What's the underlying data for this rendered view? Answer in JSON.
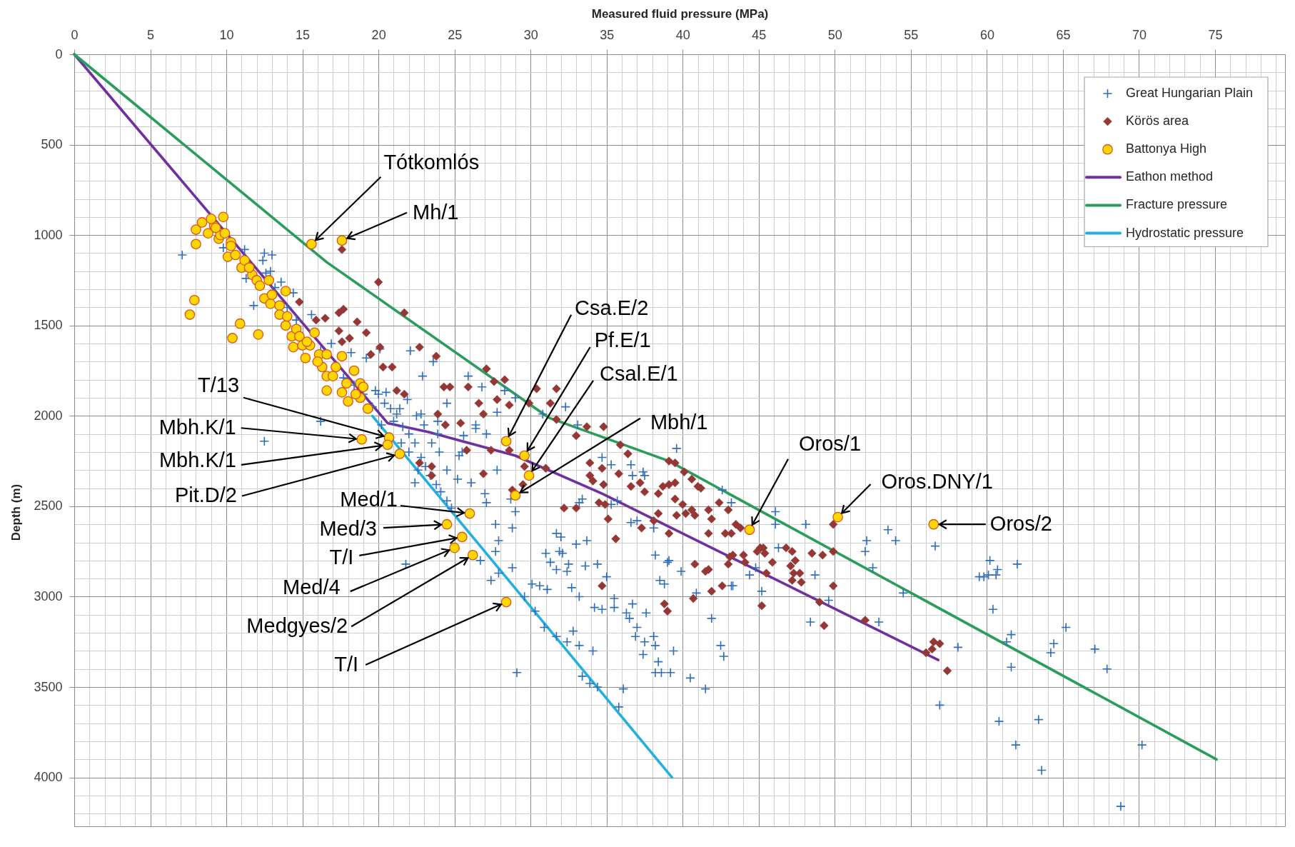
{
  "chart_data": {
    "type": "scatter",
    "xlabel": "Measured fluid pressure (MPa)",
    "ylabel": "Depth (m)",
    "xlim": [
      0,
      79.6
    ],
    "ylim": [
      4270,
      0
    ],
    "xticks": [
      0,
      {
        "value": 1,
        "label": null
      },
      {
        "value": 2,
        "label": null
      },
      {
        "value": 3,
        "label": null
      },
      {
        "value": 4,
        "label": null
      },
      5,
      {
        "value": 6,
        "label": null
      },
      {
        "value": 7,
        "label": null
      },
      {
        "value": 8,
        "label": null
      },
      {
        "value": 9,
        "label": null
      },
      10,
      {
        "value": 11,
        "label": null
      },
      {
        "value": 12,
        "label": null
      },
      {
        "value": 13,
        "label": null
      },
      {
        "value": 14,
        "label": null
      },
      15,
      {
        "value": 16,
        "label": null
      },
      {
        "value": 17,
        "label": null
      },
      {
        "value": 18,
        "label": null
      },
      {
        "value": 19,
        "label": null
      },
      20,
      {
        "value": 21,
        "label": null
      },
      {
        "value": 22,
        "label": null
      },
      {
        "value": 23,
        "label": null
      },
      {
        "value": 24,
        "label": null
      },
      25,
      {
        "value": 26,
        "label": null
      },
      {
        "value": 27,
        "label": null
      },
      {
        "value": 28,
        "label": null
      },
      {
        "value": 29,
        "label": null
      },
      30,
      {
        "value": 31,
        "label": null
      },
      {
        "value": 32,
        "label": null
      },
      {
        "value": 33,
        "label": null
      },
      {
        "value": 34,
        "label": null
      },
      35,
      {
        "value": 36,
        "label": null
      },
      {
        "value": 37,
        "label": null
      },
      {
        "value": 38,
        "label": null
      },
      {
        "value": 39,
        "label": null
      },
      40,
      {
        "value": 41,
        "label": null
      },
      {
        "value": 42,
        "label": null
      },
      {
        "value": 43,
        "label": null
      },
      {
        "value": 44,
        "label": null
      },
      45,
      {
        "value": 46,
        "label": null
      },
      {
        "value": 47,
        "label": null
      },
      {
        "value": 48,
        "label": null
      },
      {
        "value": 49,
        "label": null
      },
      50,
      {
        "value": 51,
        "label": null
      },
      {
        "value": 52,
        "label": null
      },
      {
        "value": 53,
        "label": null
      },
      {
        "value": 54,
        "label": null
      },
      55,
      {
        "value": 56,
        "label": null
      },
      {
        "value": 57,
        "label": null
      },
      {
        "value": 58,
        "label": null
      },
      {
        "value": 59,
        "label": null
      },
      60,
      {
        "value": 61,
        "label": null
      },
      {
        "value": 62,
        "label": null
      },
      {
        "value": 63,
        "label": null
      },
      {
        "value": 64,
        "label": null
      },
      65,
      {
        "value": 66,
        "label": null
      },
      {
        "value": 67,
        "label": null
      },
      {
        "value": 68,
        "label": null
      },
      {
        "value": 69,
        "label": null
      },
      70,
      {
        "value": 71,
        "label": null
      },
      {
        "value": 72,
        "label": null
      },
      {
        "value": 73,
        "label": null
      },
      {
        "value": 74,
        "label": null
      },
      75,
      {
        "value": 76,
        "label": null
      },
      {
        "value": 77,
        "label": null
      },
      {
        "value": 78,
        "label": null
      },
      {
        "value": 79,
        "label": null
      }
    ],
    "yticks": [
      0,
      {
        "value": 100,
        "label": null
      },
      {
        "value": 200,
        "label": null
      },
      {
        "value": 300,
        "label": null
      },
      {
        "value": 400,
        "label": null
      },
      500,
      {
        "value": 600,
        "label": null
      },
      {
        "value": 700,
        "label": null
      },
      {
        "value": 800,
        "label": null
      },
      {
        "value": 900,
        "label": null
      },
      1000,
      {
        "value": 1100,
        "label": null
      },
      {
        "value": 1200,
        "label": null
      },
      {
        "value": 1300,
        "label": null
      },
      {
        "value": 1400,
        "label": null
      },
      1500,
      {
        "value": 1600,
        "label": null
      },
      {
        "value": 1700,
        "label": null
      },
      {
        "value": 1800,
        "label": null
      },
      {
        "value": 1900,
        "label": null
      },
      2000,
      {
        "value": 2100,
        "label": null
      },
      {
        "value": 2200,
        "label": null
      },
      {
        "value": 2300,
        "label": null
      },
      {
        "value": 2400,
        "label": null
      },
      2500,
      {
        "value": 2600,
        "label": null
      },
      {
        "value": 2700,
        "label": null
      },
      {
        "value": 2800,
        "label": null
      },
      {
        "value": 2900,
        "label": null
      },
      3000,
      {
        "value": 3100,
        "label": null
      },
      {
        "value": 3200,
        "label": null
      },
      {
        "value": 3300,
        "label": null
      },
      {
        "value": 3400,
        "label": null
      },
      3500,
      {
        "value": 3600,
        "label": null
      },
      {
        "value": 3700,
        "label": null
      },
      {
        "value": 3800,
        "label": null
      },
      {
        "value": 3900,
        "label": null
      },
      4000,
      {
        "value": 4100,
        "label": null
      },
      {
        "value": 4200,
        "label": null
      }
    ],
    "grid": true,
    "legend": "top right",
    "series": [
      {
        "name": "Great Hungarian Plain",
        "marker": "cross",
        "color": "#2e6cc0",
        "x": [
          7.1,
          12.5,
          13.0,
          12.4,
          12.9,
          11.8,
          13.6,
          14.4,
          15.6,
          16.9,
          18.2,
          19.2,
          20.1,
          22.1,
          23.6,
          22.9,
          21.4,
          22.8,
          16.2,
          19.8,
          20.5,
          11.3,
          9.8,
          12.5,
          21.8,
          22.4,
          25.9,
          26.8,
          24.5,
          28.3,
          29.0,
          27.8,
          32.3,
          30.8,
          33.1,
          23.9,
          26.4,
          20.0,
          20.4,
          20.8,
          21.2,
          21.0,
          21.6,
          22.0,
          22.4,
          22.0,
          22.8,
          23.1,
          23.4,
          23.8,
          24.1,
          24.5,
          24.8,
          21.9,
          22.5,
          23.0,
          23.5,
          24.0,
          24.5,
          25.2,
          22.6,
          19.6,
          20.2,
          23.9,
          25.5,
          21.5,
          12.6,
          13.2,
          14.0,
          14.6,
          16.2,
          17.7,
          18.4,
          19.0,
          11.2,
          26.4,
          27.1,
          25.6,
          25.3,
          27.8,
          26.1,
          27.0,
          27.1,
          28.7,
          29.0,
          28.8,
          27.7,
          27.9,
          28.8,
          27.4,
          27.9,
          27.7,
          26.7,
          30.1,
          31.1,
          30.6,
          29.6,
          30.3,
          30.9,
          31.7,
          32.4,
          32.8,
          33.2,
          34.1,
          29.1,
          33.4,
          33.9,
          34.4,
          36.1,
          35.8,
          31.0,
          31.3,
          31.7,
          32.1,
          32.5,
          32.4,
          32.7,
          33.2,
          31.7,
          32.0,
          31.9,
          33.0,
          33.2,
          33.4,
          33.7,
          33.6,
          34.4,
          35.0,
          35.5,
          34.2,
          34.7,
          35.5,
          36.3,
          36.7,
          36.5,
          37.0,
          37.6,
          36.9,
          37.5,
          38.1,
          38.2,
          37.4,
          38.4,
          38.2,
          38.6,
          39.2,
          39.4,
          40.5,
          41.5,
          39.6,
          36.6,
          37.4,
          37.5,
          36.7,
          35.3,
          34.7,
          35.3,
          35.7,
          36.6,
          37.0,
          38.2,
          39.1,
          39.0,
          39.9,
          38.5,
          38.8,
          40.9,
          41.9,
          42.5,
          42.7,
          42.6,
          43.2,
          46.1,
          48.1,
          46.1,
          43.2,
          43.3,
          44.4,
          44.8,
          45.2,
          48.7,
          48.4,
          49.6,
          52.1,
          52.0,
          52.9,
          52.5,
          46.3,
          38.1,
          53.5,
          54.0,
          56.6,
          54.5,
          58.1,
          60.2,
          60.7,
          60.6,
          59.5,
          59.8,
          60.1,
          62.0,
          60.4,
          61.6,
          61.3,
          61.6,
          64.2,
          64.4,
          65.2,
          67.1,
          67.9,
          56.9,
          60.8,
          63.4,
          61.9,
          63.6,
          70.2,
          68.8
        ],
        "values": [
          1110,
          1100,
          1110,
          1140,
          1200,
          1390,
          1260,
          1320,
          1440,
          1600,
          1650,
          1680,
          1630,
          1640,
          1700,
          1780,
          1960,
          1990,
          2030,
          1860,
          1870,
          1240,
          1070,
          2140,
          2820,
          2370,
          1780,
          1840,
          1930,
          1860,
          1900,
          1980,
          1950,
          1990,
          2050,
          2030,
          2050,
          1880,
          1930,
          1960,
          1990,
          2030,
          2060,
          2100,
          2150,
          2200,
          2230,
          2280,
          2330,
          2380,
          2420,
          2470,
          2510,
          1910,
          2000,
          2050,
          2150,
          2200,
          2300,
          2350,
          2300,
          1950,
          2050,
          2100,
          2200,
          2150,
          1210,
          1290,
          1400,
          1470,
          1640,
          1790,
          1830,
          1880,
          1080,
          2070,
          2100,
          2110,
          2220,
          2300,
          2370,
          2430,
          2480,
          2460,
          2530,
          2620,
          2600,
          2690,
          2840,
          2910,
          2870,
          2750,
          2800,
          2930,
          2960,
          2940,
          3000,
          3080,
          3170,
          3220,
          3250,
          3190,
          3270,
          3300,
          3420,
          3440,
          3480,
          3500,
          3510,
          3610,
          2760,
          2810,
          2850,
          2760,
          2820,
          2860,
          2950,
          3000,
          2650,
          2670,
          2750,
          2710,
          2480,
          2460,
          2690,
          2830,
          2820,
          2890,
          3010,
          3060,
          3070,
          3060,
          3090,
          3040,
          3120,
          3170,
          3090,
          3220,
          3250,
          3220,
          3270,
          3320,
          3360,
          3420,
          3420,
          3420,
          3300,
          3450,
          3510,
          2180,
          2270,
          2310,
          2330,
          2330,
          2270,
          2230,
          2490,
          2470,
          2590,
          2580,
          2770,
          2800,
          2810,
          2860,
          2910,
          2930,
          2980,
          3120,
          3270,
          3330,
          2410,
          2480,
          2530,
          2600,
          2600,
          2940,
          2940,
          2880,
          2840,
          2970,
          2880,
          3140,
          3020,
          2690,
          2750,
          3140,
          2840,
          2730,
          2620,
          2630,
          2690,
          2720,
          2980,
          3280,
          2800,
          2850,
          2880,
          2890,
          2890,
          2880,
          2820,
          3070,
          3210,
          3250,
          3390,
          3310,
          3260,
          3170,
          3290,
          3400,
          3600,
          3690,
          3680,
          3820,
          3960,
          3820,
          4160
        ]
      },
      {
        "name": "Körös area",
        "marker": "diamond",
        "color": "#953735",
        "x": [
          17.6,
          20.0,
          21.7,
          14.8,
          15.9,
          16.5,
          17.4,
          17.7,
          18.6,
          17.4,
          18.1,
          17.6,
          19.2,
          20.1,
          19.5,
          20.3,
          20.9,
          22.7,
          23.8,
          21.2,
          21.7,
          27.1,
          28.3,
          27.6,
          24.3,
          24.7,
          25.9,
          30.4,
          31.7,
          26.6,
          27.8,
          28.6,
          29.9,
          31.3,
          26.9,
          23.9,
          25.4,
          24.4,
          31.7,
          33.7,
          34.8,
          25.8,
          27.4,
          26.9,
          28.6,
          29.6,
          28.8,
          29.5,
          31.0,
          33.0,
          32.2,
          33.0,
          33.9,
          33.9,
          34.7,
          34.8,
          34.1,
          34.5,
          34.9,
          35.1,
          35.8,
          35.9,
          36.4,
          35.6,
          34.7,
          36.6,
          37.2,
          37.5,
          37.3,
          38.4,
          38.1,
          38.7,
          39.1,
          39.5,
          39.1,
          39.5,
          38.4,
          39.1,
          39.5,
          40.0,
          40.1,
          40.6,
          41.0,
          41.2,
          39.6,
          40.2,
          40.6,
          40.8,
          41.7,
          41.9,
          41.7,
          42.4,
          43.0,
          42.8,
          43.2,
          43.5,
          43.8,
          40.8,
          41.5,
          41.7,
          41.9,
          42.6,
          40.7,
          38.8,
          39.0,
          43.1,
          43.3,
          43.0,
          44.0,
          44.1,
          44.9,
          45.1,
          45.3,
          45.4,
          45.2,
          45.9,
          45.5,
          46.8,
          47.2,
          47.4,
          47.1,
          47.3,
          47.2,
          47.8,
          47.7,
          48.5,
          49.2,
          49.9,
          49.9,
          49.0,
          49.3,
          52.0,
          49.9,
          22.7,
          23.5,
          23.5,
          56.5,
          56.9,
          56.4,
          56.0,
          57.4
        ],
        "values": [
          1080,
          1260,
          1430,
          1370,
          1470,
          1460,
          1430,
          1410,
          1480,
          1530,
          1570,
          1590,
          1540,
          1620,
          1660,
          1730,
          1730,
          1620,
          1670,
          1860,
          1880,
          1740,
          1800,
          1810,
          1840,
          1840,
          1840,
          1850,
          1850,
          1930,
          1910,
          1940,
          1930,
          1930,
          1990,
          1990,
          2040,
          2050,
          2020,
          2060,
          2060,
          2190,
          2190,
          2320,
          2190,
          2280,
          2410,
          2380,
          2290,
          2110,
          2510,
          2510,
          2260,
          2330,
          2290,
          2380,
          2360,
          2480,
          2490,
          2570,
          2320,
          2160,
          2210,
          2680,
          2940,
          2390,
          2370,
          2420,
          2620,
          2430,
          2580,
          2390,
          2380,
          2370,
          2250,
          2260,
          2540,
          2650,
          2460,
          2490,
          2310,
          2350,
          2390,
          2400,
          2550,
          2540,
          2520,
          2550,
          2520,
          2570,
          2650,
          2480,
          2520,
          2650,
          2650,
          2600,
          2620,
          2820,
          2860,
          2850,
          2970,
          2940,
          3010,
          3040,
          3080,
          2780,
          2770,
          2820,
          2770,
          2810,
          2750,
          2730,
          2730,
          2760,
          3050,
          2810,
          2870,
          2730,
          2750,
          2800,
          2830,
          2870,
          2910,
          2920,
          2870,
          2760,
          2770,
          2750,
          2940,
          3030,
          3160,
          3130,
          2600,
          2260,
          2280,
          2330,
          3250,
          3260,
          3290,
          3310,
          3410
        ]
      },
      {
        "name": "Battonya High",
        "marker": "circle",
        "color": "#ffd700",
        "x": [
          8.4,
          8.0,
          8.0,
          8.8,
          9.8,
          9.5,
          10.1,
          10.6,
          11.0,
          11.7,
          12.0,
          12.8,
          13.9,
          12.5,
          12.9,
          13.5,
          13.5,
          13.9,
          14.3,
          14.6,
          14.4,
          15.0,
          15.2,
          15.8,
          15.5,
          16.1,
          16.3,
          16.6,
          16.6,
          16.6,
          17.2,
          17.6,
          17.6,
          18.0,
          18.4,
          18.8,
          18.8,
          19.0,
          7.9,
          7.6,
          10.4,
          10.9,
          12.1,
          9.2,
          9.6,
          10.3,
          9.0,
          9.3,
          9.9,
          10.3,
          11.2,
          11.5,
          12.2,
          13.0,
          14.0,
          14.8,
          15.3,
          16.0,
          17.0,
          17.9,
          18.5,
          19.3,
          15.6,
          17.6,
          18.9,
          20.7,
          20.6,
          21.4,
          28.4,
          29.6,
          29.9,
          29.0,
          26.0,
          24.5,
          25.5,
          25.0,
          26.2,
          28.4,
          44.4,
          50.2,
          56.5
        ],
        "values": [
          930,
          970,
          1050,
          990,
          900,
          1020,
          1120,
          1110,
          1180,
          1220,
          1250,
          1250,
          1310,
          1350,
          1380,
          1390,
          1440,
          1500,
          1560,
          1520,
          1620,
          1610,
          1680,
          1540,
          1610,
          1660,
          1730,
          1660,
          1780,
          1860,
          1730,
          1670,
          1870,
          1920,
          1750,
          1820,
          1900,
          1840,
          1360,
          1440,
          1570,
          1490,
          1550,
          950,
          1000,
          1040,
          910,
          960,
          990,
          1060,
          1140,
          1180,
          1280,
          1330,
          1450,
          1560,
          1590,
          1700,
          1780,
          1820,
          1880,
          1960,
          1050,
          1030,
          2130,
          2120,
          2160,
          2210,
          2140,
          2220,
          2330,
          2440,
          2540,
          2600,
          2670,
          2730,
          2770,
          3030,
          2630,
          2560,
          2600
        ]
      },
      {
        "name": "Eathon method",
        "type": "line",
        "color": "#7030a0",
        "x": [
          0,
          20.6,
          23.3,
          29.0,
          34.7,
          56.8
        ],
        "values": [
          0,
          2040,
          2090,
          2220,
          2430,
          3350
        ]
      },
      {
        "name": "Fracture pressure",
        "type": "line",
        "color": "#2a9d5a",
        "x": [
          0,
          16.6,
          31.2,
          39.1,
          75.1
        ],
        "values": [
          0,
          1150,
          2010,
          2250,
          3900
        ]
      },
      {
        "name": "Hydrostatic pressure",
        "type": "line",
        "color": "#22b0e0",
        "x": [
          19.6,
          39.3
        ],
        "values": [
          2000,
          4000
        ]
      }
    ],
    "annotations": [
      {
        "text": "Tótkomlós",
        "x": 15.6,
        "y": 1050
      },
      {
        "text": "Mh/1",
        "x": 17.6,
        "y": 1030
      },
      {
        "text": "Csa.E/2",
        "x": 28.4,
        "y": 2140
      },
      {
        "text": "Pf.E/1",
        "x": 29.6,
        "y": 2220
      },
      {
        "text": "Csal.E/1",
        "x": 29.9,
        "y": 2330
      },
      {
        "text": "Mbh/1",
        "x": 29.0,
        "y": 2440
      },
      {
        "text": "Oros/1",
        "x": 44.4,
        "y": 2630
      },
      {
        "text": "Oros.DNY/1",
        "x": 50.2,
        "y": 2560
      },
      {
        "text": "Oros/2",
        "x": 56.5,
        "y": 2600
      },
      {
        "text": "T/13",
        "x": 20.7,
        "y": 2120
      },
      {
        "text": "Mbh.K/1",
        "x": 18.9,
        "y": 2130
      },
      {
        "text": "Mbh.K/1",
        "x": 20.6,
        "y": 2160
      },
      {
        "text": "Pit.D/2",
        "x": 21.4,
        "y": 2210
      },
      {
        "text": "Med/1",
        "x": 26.0,
        "y": 2540
      },
      {
        "text": "Med/3",
        "x": 24.5,
        "y": 2600
      },
      {
        "text": "T/I",
        "x": 25.5,
        "y": 2670
      },
      {
        "text": "Med/4",
        "x": 25.0,
        "y": 2730
      },
      {
        "text": "Medgyes/2",
        "x": 26.2,
        "y": 2770
      },
      {
        "text": "T/I",
        "x": 28.4,
        "y": 3030
      }
    ]
  }
}
